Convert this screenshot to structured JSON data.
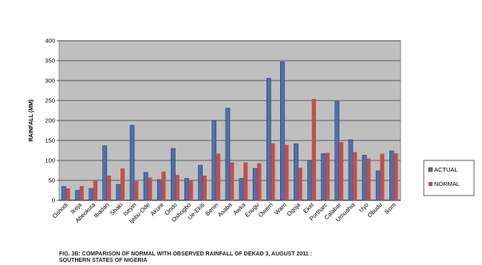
{
  "chart_data": {
    "type": "bar",
    "title": "FIG. 3B: COMPARISON OF NORMAL  WITH OBSERVED RAINFALL  OF  DEKAD 3, AUGUST 2011 :",
    "subtitle": "SOUTHERN STATES OF NIGERIA",
    "ylabel": "RAINFALL (MM)",
    "xlabel": "",
    "ylim": [
      0,
      400
    ],
    "yticks": [
      0,
      50,
      100,
      150,
      200,
      250,
      300,
      350,
      400
    ],
    "grid": true,
    "legend_position": "right",
    "categories": [
      "Oshodi",
      "Ikeja",
      "Abeokuta",
      "Ibadan",
      "Shaki",
      "Iseyin",
      "Ijebu-Ode",
      "Akure",
      "Ondo",
      "Oshogbo",
      "Ue-Ekiti",
      "Benin",
      "Asaba",
      "Awka",
      "Enugu",
      "Owerri",
      "Warri",
      "Ogoja",
      "Eket",
      "Portharc",
      "Calabar",
      "Umuahia",
      "Uyo",
      "Obudu",
      "Ikom"
    ],
    "series": [
      {
        "name": "ACTUAL",
        "color": "#4f6fae",
        "values": [
          35,
          25,
          30,
          137,
          40,
          188,
          70,
          52,
          130,
          55,
          88,
          199,
          231,
          55,
          80,
          306,
          347,
          142,
          100,
          117,
          248,
          152,
          113,
          74,
          124
        ]
      },
      {
        "name": "NORMAL",
        "color": "#c0504d",
        "values": [
          30,
          36,
          50,
          62,
          80,
          48,
          57,
          72,
          64,
          50,
          62,
          117,
          95,
          95,
          93,
          143,
          139,
          82,
          254,
          119,
          146,
          121,
          105,
          117,
          118
        ]
      }
    ]
  },
  "colors": {
    "plot_background": "#bfbfbf",
    "gridline": "#000000"
  }
}
